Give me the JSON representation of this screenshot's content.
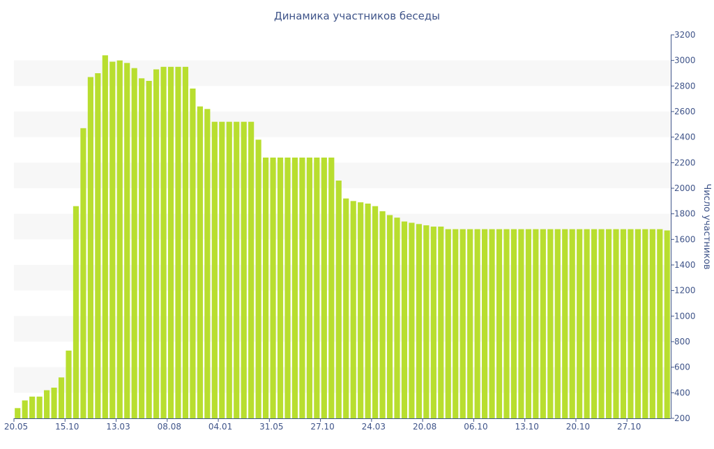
{
  "colors": {
    "bar": "#b8de2f",
    "band": "#f7f7f7",
    "axis_text": "#3f5489",
    "title_text": "#3f5489"
  },
  "chart_data": {
    "type": "bar",
    "title": "Динамика участников беседы",
    "xlabel": "",
    "ylabel": "Число участников",
    "y_axis_side": "right",
    "ylim": [
      200,
      3200
    ],
    "yticks": [
      200,
      400,
      600,
      800,
      1000,
      1200,
      1400,
      1600,
      1800,
      2000,
      2200,
      2400,
      2600,
      2800,
      3000,
      3200
    ],
    "grid": "alternating horizontal bands",
    "legend": "none",
    "x_tick_labels": [
      {
        "label": "20.05",
        "index": 0
      },
      {
        "label": "15.10",
        "index": 7
      },
      {
        "label": "13.03",
        "index": 14
      },
      {
        "label": "08.08",
        "index": 21
      },
      {
        "label": "04.01",
        "index": 28
      },
      {
        "label": "31.05",
        "index": 35
      },
      {
        "label": "27.10",
        "index": 42
      },
      {
        "label": "24.03",
        "index": 49
      },
      {
        "label": "20.08",
        "index": 56
      },
      {
        "label": "06.10",
        "index": 63
      },
      {
        "label": "13.10",
        "index": 70
      },
      {
        "label": "20.10",
        "index": 77
      },
      {
        "label": "27.10",
        "index": 84
      }
    ],
    "values": [
      280,
      340,
      370,
      370,
      420,
      440,
      520,
      730,
      1860,
      2470,
      2870,
      2900,
      3040,
      2990,
      3000,
      2980,
      2940,
      2860,
      2840,
      2930,
      2950,
      2950,
      2950,
      2950,
      2780,
      2640,
      2620,
      2520,
      2520,
      2520,
      2520,
      2520,
      2520,
      2380,
      2240,
      2240,
      2240,
      2240,
      2240,
      2240,
      2240,
      2240,
      2240,
      2240,
      2060,
      1920,
      1900,
      1890,
      1880,
      1860,
      1820,
      1790,
      1770,
      1740,
      1730,
      1720,
      1710,
      1700,
      1700,
      1680,
      1680,
      1680,
      1680,
      1680,
      1680,
      1680,
      1680,
      1680,
      1680,
      1680,
      1680,
      1680,
      1680,
      1680,
      1680,
      1680,
      1680,
      1680,
      1680,
      1680,
      1680,
      1680,
      1680,
      1680,
      1680,
      1680,
      1680,
      1680,
      1680,
      1670
    ]
  }
}
